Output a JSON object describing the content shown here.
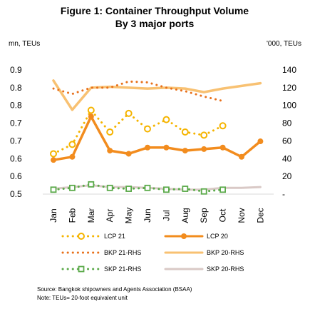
{
  "chart_data": {
    "type": "line",
    "title_line1": "Figure 1: Container Throughput Volume",
    "title_line2": "By 3 major ports",
    "ylabel_left": "mn, TEUs",
    "ylabel_right": "'000, TEUs",
    "ylim_left": [
      0.5,
      0.9
    ],
    "yticks_left": [
      "0.9",
      "0.8",
      "0.8",
      "0.7",
      "0.7",
      "0.6",
      "0.6",
      "0.5"
    ],
    "ylim_right": [
      0,
      140
    ],
    "yticks_right": [
      "140",
      "120",
      "100",
      "80",
      "60",
      "40",
      "20",
      "-"
    ],
    "categories": [
      "Jan",
      "Feb",
      "Mar",
      "Apr",
      "May",
      "Jun",
      "Jul",
      "Aug",
      "Sep",
      "Oct",
      "Nov",
      "Dec"
    ],
    "series": [
      {
        "name": "LCP 21",
        "axis": "left",
        "color": "#F5B400",
        "style": "dotted-marker",
        "values": [
          0.63,
          0.66,
          0.77,
          0.7,
          0.76,
          0.71,
          0.74,
          0.7,
          0.69,
          0.72,
          null,
          null
        ]
      },
      {
        "name": "LCP 20",
        "axis": "left",
        "color": "#F28C1E",
        "style": "solid-marker",
        "values": [
          0.61,
          0.62,
          0.75,
          0.64,
          0.63,
          0.65,
          0.65,
          0.64,
          0.645,
          0.65,
          0.62,
          0.67
        ]
      },
      {
        "name": "BKP 21-RHS",
        "axis": "right",
        "color": "#E8701A",
        "style": "dotted",
        "values": [
          119,
          113,
          120,
          120,
          127,
          126,
          120,
          116,
          110,
          105,
          null,
          null
        ]
      },
      {
        "name": "BKP 20-RHS",
        "axis": "right",
        "color": "#F8C172",
        "style": "solid",
        "values": [
          128,
          95,
          120,
          121,
          120,
          119,
          120,
          119,
          115,
          119,
          122,
          125
        ]
      },
      {
        "name": "SKP 21-RHS",
        "axis": "right",
        "color": "#5BAA4A",
        "style": "dotted-marker",
        "values": [
          5,
          7,
          11,
          7,
          6,
          7,
          5,
          6,
          3,
          5,
          null,
          null
        ]
      },
      {
        "name": "SKP 20-RHS",
        "axis": "right",
        "color": "#D9C9C6",
        "style": "solid",
        "values": [
          6,
          8,
          10,
          8,
          8,
          7,
          6,
          5,
          5,
          7,
          7,
          8
        ]
      }
    ],
    "grid": false,
    "legend_position": "bottom"
  },
  "notes": {
    "source": "Source: Bangkok shipowners and Agents Association (BSAA)",
    "note": "Note: TEUs= 20-foot equivalent unit"
  }
}
